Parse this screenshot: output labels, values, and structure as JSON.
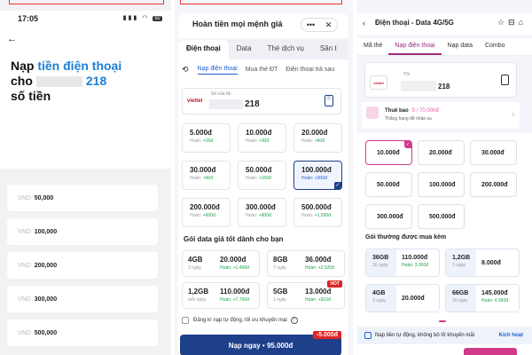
{
  "panel1": {
    "time": "17:05",
    "battery": "92",
    "heading": {
      "prefix": "Nạp",
      "highlight": "tiền điện thoại",
      "line2_prefix": "cho",
      "number_suffix": "218",
      "line3": "số tiền"
    },
    "currency": "VND",
    "amounts": [
      "50,000",
      "100,000",
      "200,000",
      "300,000",
      "500,000"
    ]
  },
  "panel2": {
    "title": "Hoàn tiền mọi mệnh giá",
    "tabs": [
      "Điện thoại",
      "Data",
      "Thẻ dịch vụ",
      "Săn t"
    ],
    "subtabs": [
      "Nạp điện thoại",
      "Mua thẻ ĐT",
      "Điện thoại trả sau"
    ],
    "phone": {
      "carrier": "viettel",
      "label": "Số của tôi",
      "number_suffix": "218"
    },
    "denominations": [
      {
        "value": "5.000đ",
        "hoan": "Hoàn:",
        "bonus": "+15đ"
      },
      {
        "value": "10.000đ",
        "hoan": "Hoàn:",
        "bonus": "+30đ"
      },
      {
        "value": "20.000đ",
        "hoan": "Hoàn:",
        "bonus": "+60đ"
      },
      {
        "value": "30.000đ",
        "hoan": "Hoàn:",
        "bonus": "+90đ"
      },
      {
        "value": "50.000đ",
        "hoan": "Hoàn:",
        "bonus": "+150đ"
      },
      {
        "value": "100.000đ",
        "hoan": "Hoàn:",
        "bonus": "+300đ"
      },
      {
        "value": "200.000đ",
        "hoan": "Hoàn:",
        "bonus": "+600đ"
      },
      {
        "value": "300.000đ",
        "hoan": "Hoàn:",
        "bonus": "+900đ"
      },
      {
        "value": "500.000đ",
        "hoan": "Hoàn:",
        "bonus": "+1.500đ"
      }
    ],
    "selected_index": 5,
    "data_section": "Gói data giá tốt dành cho bạn",
    "data_packs": [
      {
        "gb": "4GB",
        "days": "3 ngày",
        "price": "20.000đ",
        "hoan": "Hoàn: +1.400đ",
        "hot": ""
      },
      {
        "gb": "8GB",
        "days": "7 ngày",
        "price": "36.000đ",
        "hoan": "Hoàn: +2.520đ",
        "hot": ""
      },
      {
        "gb": "1,2GB",
        "days": "mỗi ngày",
        "price": "110.000đ",
        "hoan": "Hoàn: +7.700đ",
        "hot": ""
      },
      {
        "gb": "5GB",
        "days": "1 ngày",
        "price": "13.000đ",
        "hoan": "Hoàn: +910đ",
        "hot": "HOT"
      }
    ],
    "auto_text": "Đăng kí nạp tự động, tối ưu khuyến mại",
    "cta": "Nạp ngay • 95.000đ",
    "discount": "-5.000đ"
  },
  "panel3": {
    "title": "Điện thoại - Data 4G/5G",
    "tabs": [
      "Mã thẻ",
      "Nạp điện thoại",
      "Nạp data",
      "Combo"
    ],
    "phone": {
      "carrier": "viettel",
      "label": "Tôi",
      "number_suffix": "218"
    },
    "subscription": {
      "title": "Thuê bao",
      "progress": "0 / 70.000đ",
      "note": "Thắng hạng để nhận xu"
    },
    "denominations": [
      "10.000đ",
      "20.000đ",
      "30.000đ",
      "50.000đ",
      "100.000đ",
      "200.000đ",
      "300.000đ",
      "500.000đ"
    ],
    "selected_index": 0,
    "bundle_section": "Gói thường được mua kèm",
    "bundles": [
      {
        "gb": "36GB",
        "days": "30 ngày",
        "price": "110.000đ",
        "hoan": "Hoàn: 3.300đ"
      },
      {
        "gb": "1,2GB",
        "days": "1 ngày",
        "price": "8.000đ",
        "hoan": ""
      },
      {
        "gb": "4GB",
        "days": "3 ngày",
        "price": "20.000đ",
        "hoan": ""
      },
      {
        "gb": "66GB",
        "days": "30 ngày",
        "price": "145.000đ",
        "hoan": "Hoàn: 4.350đ"
      }
    ],
    "auto_text": "Nạp tiền tự động, không bỏ lỡ khuyến mãi",
    "auto_link": "Kích hoạt"
  }
}
